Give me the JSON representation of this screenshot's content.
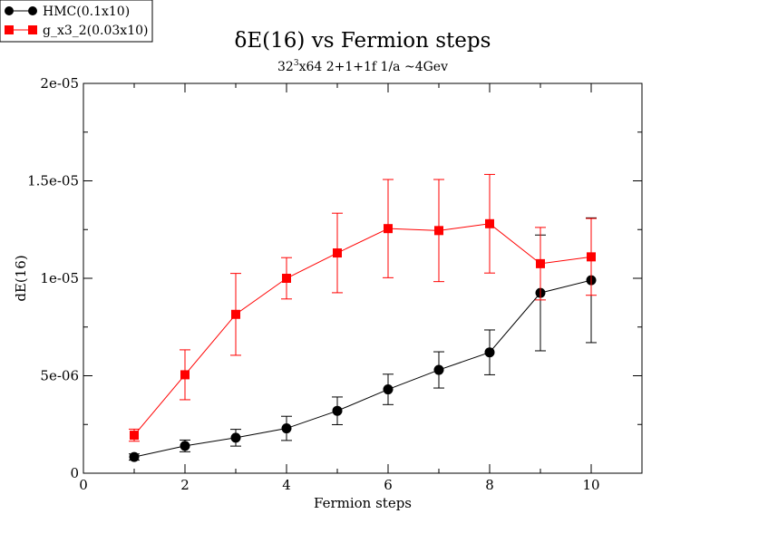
{
  "chart_data": {
    "type": "line",
    "title": "δE(16) vs Fermion steps",
    "subtitle_base": "32",
    "subtitle_sup": "3",
    "subtitle_rest": "x64 2+1+1f 1/a ~4Gev",
    "xlabel": "Fermion steps",
    "ylabel": "dE(16)",
    "xlim": [
      0,
      11
    ],
    "ylim": [
      0,
      2e-05
    ],
    "x_ticks": [
      0,
      2,
      4,
      6,
      8,
      10
    ],
    "x_tick_labels": [
      "0",
      "2",
      "4",
      "6",
      "8",
      "10"
    ],
    "y_ticks": [
      0,
      5e-06,
      1e-05,
      1.5e-05,
      2e-05
    ],
    "y_tick_labels": [
      "0",
      "5e-06",
      "1e-05",
      "1.5e-05",
      "2e-05"
    ],
    "grid": false,
    "legend_position": "top-left",
    "series": [
      {
        "name": "HMC(0.1x10)",
        "color": "#000000",
        "marker": "circle",
        "x": [
          1,
          2,
          3,
          4,
          5,
          6,
          7,
          8,
          9,
          10
        ],
        "y": [
          8.3e-07,
          1.4e-06,
          1.82e-06,
          2.3e-06,
          3.2e-06,
          4.3e-06,
          5.3e-06,
          6.2e-06,
          9.25e-06,
          9.9e-06
        ],
        "err": [
          1.6e-07,
          3e-07,
          4.3e-07,
          6.2e-07,
          7.1e-07,
          7.8e-07,
          9.3e-07,
          1.15e-06,
          2.97e-06,
          3.2e-06
        ]
      },
      {
        "name": "g_x3_2(0.03x10)",
        "color": "#ff0000",
        "marker": "square",
        "x": [
          1,
          2,
          3,
          4,
          5,
          6,
          7,
          8,
          9,
          10
        ],
        "y": [
          1.95e-06,
          5.05e-06,
          8.15e-06,
          1e-05,
          1.13e-05,
          1.255e-05,
          1.245e-05,
          1.28e-05,
          1.075e-05,
          1.11e-05
        ],
        "err": [
          3.1e-07,
          1.28e-06,
          2.1e-06,
          1.06e-06,
          2.04e-06,
          2.52e-06,
          2.62e-06,
          2.53e-06,
          1.86e-06,
          1.97e-06
        ]
      }
    ]
  }
}
